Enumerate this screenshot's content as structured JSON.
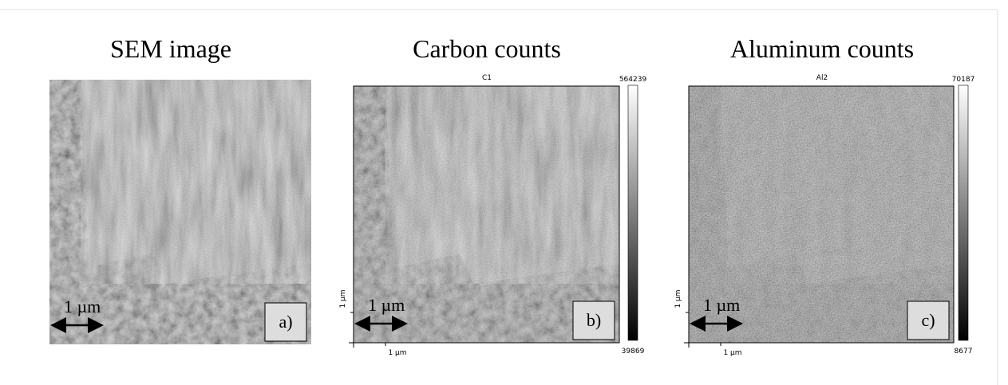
{
  "panels": [
    {
      "title": "SEM image",
      "scale_bar": "1 µm",
      "label": "a)"
    },
    {
      "title": "Carbon counts",
      "map_title": "C1",
      "colorbar": {
        "max": 564239,
        "min": 39869
      },
      "y_axis_label": "1 µm",
      "x_axis_label": "1 µm",
      "scale_bar": "1 µm",
      "label": "b)"
    },
    {
      "title": "Aluminum counts",
      "map_title": "Al2",
      "colorbar": {
        "max": 70187,
        "min": 8677
      },
      "y_axis_label": "1 µm",
      "x_axis_label": "1 µm",
      "scale_bar": "1 µm",
      "label": "c)"
    }
  ]
}
